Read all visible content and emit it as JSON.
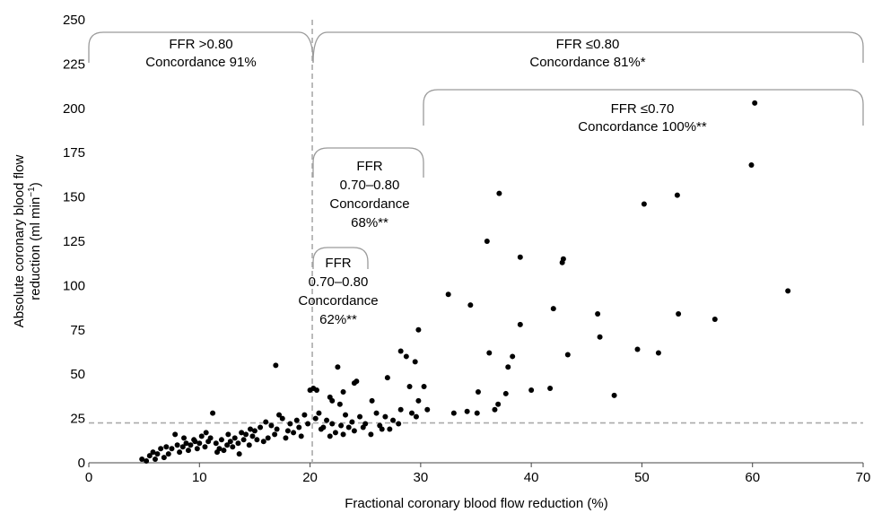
{
  "chart_data": {
    "type": "scatter",
    "xlabel": "Fractional coronary blood flow reduction (%)",
    "ylabel_line1": "Absolute coronary blood flow",
    "ylabel_line2_main": "reduction (ml min",
    "ylabel_line2_sup": "−1",
    "ylabel_line2_end": ")",
    "xlim": [
      0,
      70
    ],
    "ylim": [
      0,
      250
    ],
    "xticks": [
      0,
      10,
      20,
      30,
      40,
      50,
      60,
      70
    ],
    "yticks": [
      0,
      25,
      50,
      75,
      100,
      125,
      150,
      175,
      200,
      225,
      250
    ],
    "grid": false,
    "thresholds": {
      "x": 20.2,
      "y": 22.5
    },
    "annotations": [
      {
        "id": "ffr-gt-080",
        "lines": [
          "FFR >0.80",
          "Concordance 91%"
        ]
      },
      {
        "id": "ffr-le-080",
        "lines": [
          "FFR ≤0.80",
          "Concordance 81%*"
        ]
      },
      {
        "id": "ffr-le-070",
        "lines": [
          "FFR ≤0.70",
          "Concordance 100%**"
        ]
      },
      {
        "id": "ffr-070-080-a",
        "lines": [
          "FFR",
          "0.70–0.80",
          "Concordance",
          "68%**"
        ]
      },
      {
        "id": "ffr-070-080-b",
        "lines": [
          "FFR",
          "0.70–0.80",
          "Concordance",
          "62%**"
        ]
      }
    ],
    "points": [
      [
        60.2,
        203
      ],
      [
        59.9,
        168
      ],
      [
        53.2,
        151
      ],
      [
        50.2,
        146
      ],
      [
        37.1,
        152
      ],
      [
        36.0,
        125
      ],
      [
        39.0,
        116
      ],
      [
        42.9,
        115
      ],
      [
        42.8,
        113
      ],
      [
        63.2,
        97
      ],
      [
        32.5,
        95
      ],
      [
        34.5,
        89
      ],
      [
        42.0,
        87
      ],
      [
        46.0,
        84
      ],
      [
        53.3,
        84
      ],
      [
        56.6,
        81
      ],
      [
        39.0,
        78
      ],
      [
        29.8,
        75
      ],
      [
        46.2,
        71
      ],
      [
        49.6,
        64
      ],
      [
        51.5,
        62
      ],
      [
        43.3,
        61
      ],
      [
        36.2,
        62
      ],
      [
        38.3,
        60
      ],
      [
        28.2,
        63
      ],
      [
        28.7,
        60
      ],
      [
        29.5,
        57
      ],
      [
        37.9,
        54
      ],
      [
        35.2,
        40
      ],
      [
        40.0,
        41
      ],
      [
        41.7,
        42
      ],
      [
        47.5,
        38
      ],
      [
        37.7,
        39
      ],
      [
        37.0,
        33
      ],
      [
        36.7,
        30
      ],
      [
        33.0,
        28
      ],
      [
        34.2,
        29
      ],
      [
        35.1,
        28
      ],
      [
        29.8,
        35
      ],
      [
        30.6,
        30
      ],
      [
        29.0,
        43
      ],
      [
        30.3,
        43
      ],
      [
        16.9,
        55
      ],
      [
        22.5,
        54
      ],
      [
        24.2,
        46
      ],
      [
        24.0,
        45
      ],
      [
        25.6,
        35
      ],
      [
        23.0,
        40
      ],
      [
        21.8,
        37
      ],
      [
        22.0,
        35
      ],
      [
        22.7,
        33
      ],
      [
        20.0,
        41
      ],
      [
        20.3,
        42
      ],
      [
        20.6,
        41
      ],
      [
        27.0,
        48
      ],
      [
        28.2,
        30
      ],
      [
        29.2,
        28
      ],
      [
        29.6,
        26
      ],
      [
        26.8,
        26
      ],
      [
        27.5,
        24
      ],
      [
        28.0,
        22
      ],
      [
        26.5,
        19
      ],
      [
        25.0,
        22
      ],
      [
        24.5,
        26
      ],
      [
        24.0,
        18
      ],
      [
        23.0,
        16
      ],
      [
        23.5,
        20
      ],
      [
        22.0,
        22
      ],
      [
        21.5,
        24
      ],
      [
        21.0,
        19
      ],
      [
        20.8,
        28
      ],
      [
        21.2,
        20
      ],
      [
        19.5,
        27
      ],
      [
        19.8,
        22
      ],
      [
        19.0,
        20
      ],
      [
        18.5,
        17
      ],
      [
        18.2,
        22
      ],
      [
        18.0,
        18
      ],
      [
        17.5,
        25
      ],
      [
        17.2,
        27
      ],
      [
        17.0,
        19
      ],
      [
        16.5,
        21
      ],
      [
        16.8,
        16
      ],
      [
        16.2,
        14
      ],
      [
        15.5,
        20
      ],
      [
        15.0,
        18
      ],
      [
        15.2,
        13
      ],
      [
        14.8,
        15
      ],
      [
        14.5,
        10
      ],
      [
        14.0,
        13
      ],
      [
        13.8,
        17
      ],
      [
        13.5,
        11
      ],
      [
        13.2,
        14
      ],
      [
        13.0,
        9
      ],
      [
        12.8,
        12
      ],
      [
        12.5,
        10
      ],
      [
        12.2,
        7
      ],
      [
        12.0,
        13
      ],
      [
        11.8,
        8
      ],
      [
        11.5,
        11
      ],
      [
        11.2,
        28
      ],
      [
        11.0,
        14
      ],
      [
        10.8,
        12
      ],
      [
        10.5,
        9
      ],
      [
        10.2,
        15
      ],
      [
        10.0,
        11
      ],
      [
        9.8,
        8
      ],
      [
        9.5,
        13
      ],
      [
        9.2,
        10
      ],
      [
        9.0,
        7
      ],
      [
        8.8,
        11
      ],
      [
        8.5,
        9
      ],
      [
        8.2,
        6
      ],
      [
        8.0,
        10
      ],
      [
        7.8,
        16
      ],
      [
        7.5,
        8
      ],
      [
        7.2,
        5
      ],
      [
        7.0,
        9
      ],
      [
        6.8,
        3
      ],
      [
        6.5,
        8
      ],
      [
        6.2,
        5
      ],
      [
        6.0,
        2
      ],
      [
        5.8,
        6
      ],
      [
        5.5,
        4
      ],
      [
        5.2,
        1
      ],
      [
        4.8,
        2
      ],
      [
        14.2,
        16
      ],
      [
        14.6,
        19
      ],
      [
        15.8,
        12
      ],
      [
        16.0,
        23
      ],
      [
        17.8,
        14
      ],
      [
        18.8,
        24
      ],
      [
        19.2,
        15
      ],
      [
        20.5,
        25
      ],
      [
        21.8,
        15
      ],
      [
        22.3,
        17
      ],
      [
        22.8,
        21
      ],
      [
        23.2,
        27
      ],
      [
        23.8,
        23
      ],
      [
        24.8,
        20
      ],
      [
        25.5,
        16
      ],
      [
        26.0,
        28
      ],
      [
        26.3,
        21
      ],
      [
        27.2,
        19
      ],
      [
        12.6,
        16
      ],
      [
        11.6,
        6
      ],
      [
        13.6,
        5
      ],
      [
        9.6,
        12
      ],
      [
        10.6,
        17
      ],
      [
        8.6,
        14
      ]
    ]
  }
}
